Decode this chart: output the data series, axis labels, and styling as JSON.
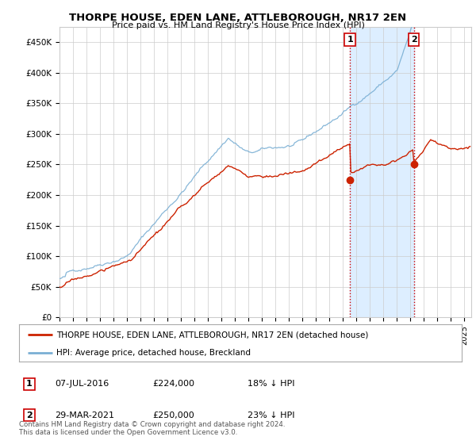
{
  "title": "THORPE HOUSE, EDEN LANE, ATTLEBOROUGH, NR17 2EN",
  "subtitle": "Price paid vs. HM Land Registry's House Price Index (HPI)",
  "yticks": [
    0,
    50000,
    100000,
    150000,
    200000,
    250000,
    300000,
    350000,
    400000,
    450000
  ],
  "ytick_labels": [
    "£0",
    "£50K",
    "£100K",
    "£150K",
    "£200K",
    "£250K",
    "£300K",
    "£350K",
    "£400K",
    "£450K"
  ],
  "xlim_start": 1995.0,
  "xlim_end": 2025.5,
  "ylim_min": 0,
  "ylim_max": 475000,
  "sale1_x": 2016.52,
  "sale1_y": 224000,
  "sale1_label": "1",
  "sale1_date": "07-JUL-2016",
  "sale1_price": "£224,000",
  "sale1_note": "18% ↓ HPI",
  "sale2_x": 2021.24,
  "sale2_y": 250000,
  "sale2_label": "2",
  "sale2_date": "29-MAR-2021",
  "sale2_price": "£250,000",
  "sale2_note": "23% ↓ HPI",
  "vline_color": "#cc0000",
  "vline_style": ":",
  "hpi_color": "#7aafd4",
  "price_color": "#cc2200",
  "shade_color": "#ddeeff",
  "legend_label_price": "THORPE HOUSE, EDEN LANE, ATTLEBOROUGH, NR17 2EN (detached house)",
  "legend_label_hpi": "HPI: Average price, detached house, Breckland",
  "footer": "Contains HM Land Registry data © Crown copyright and database right 2024.\nThis data is licensed under the Open Government Licence v3.0.",
  "background_color": "#ffffff",
  "plot_bg_color": "#ffffff",
  "grid_color": "#cccccc"
}
